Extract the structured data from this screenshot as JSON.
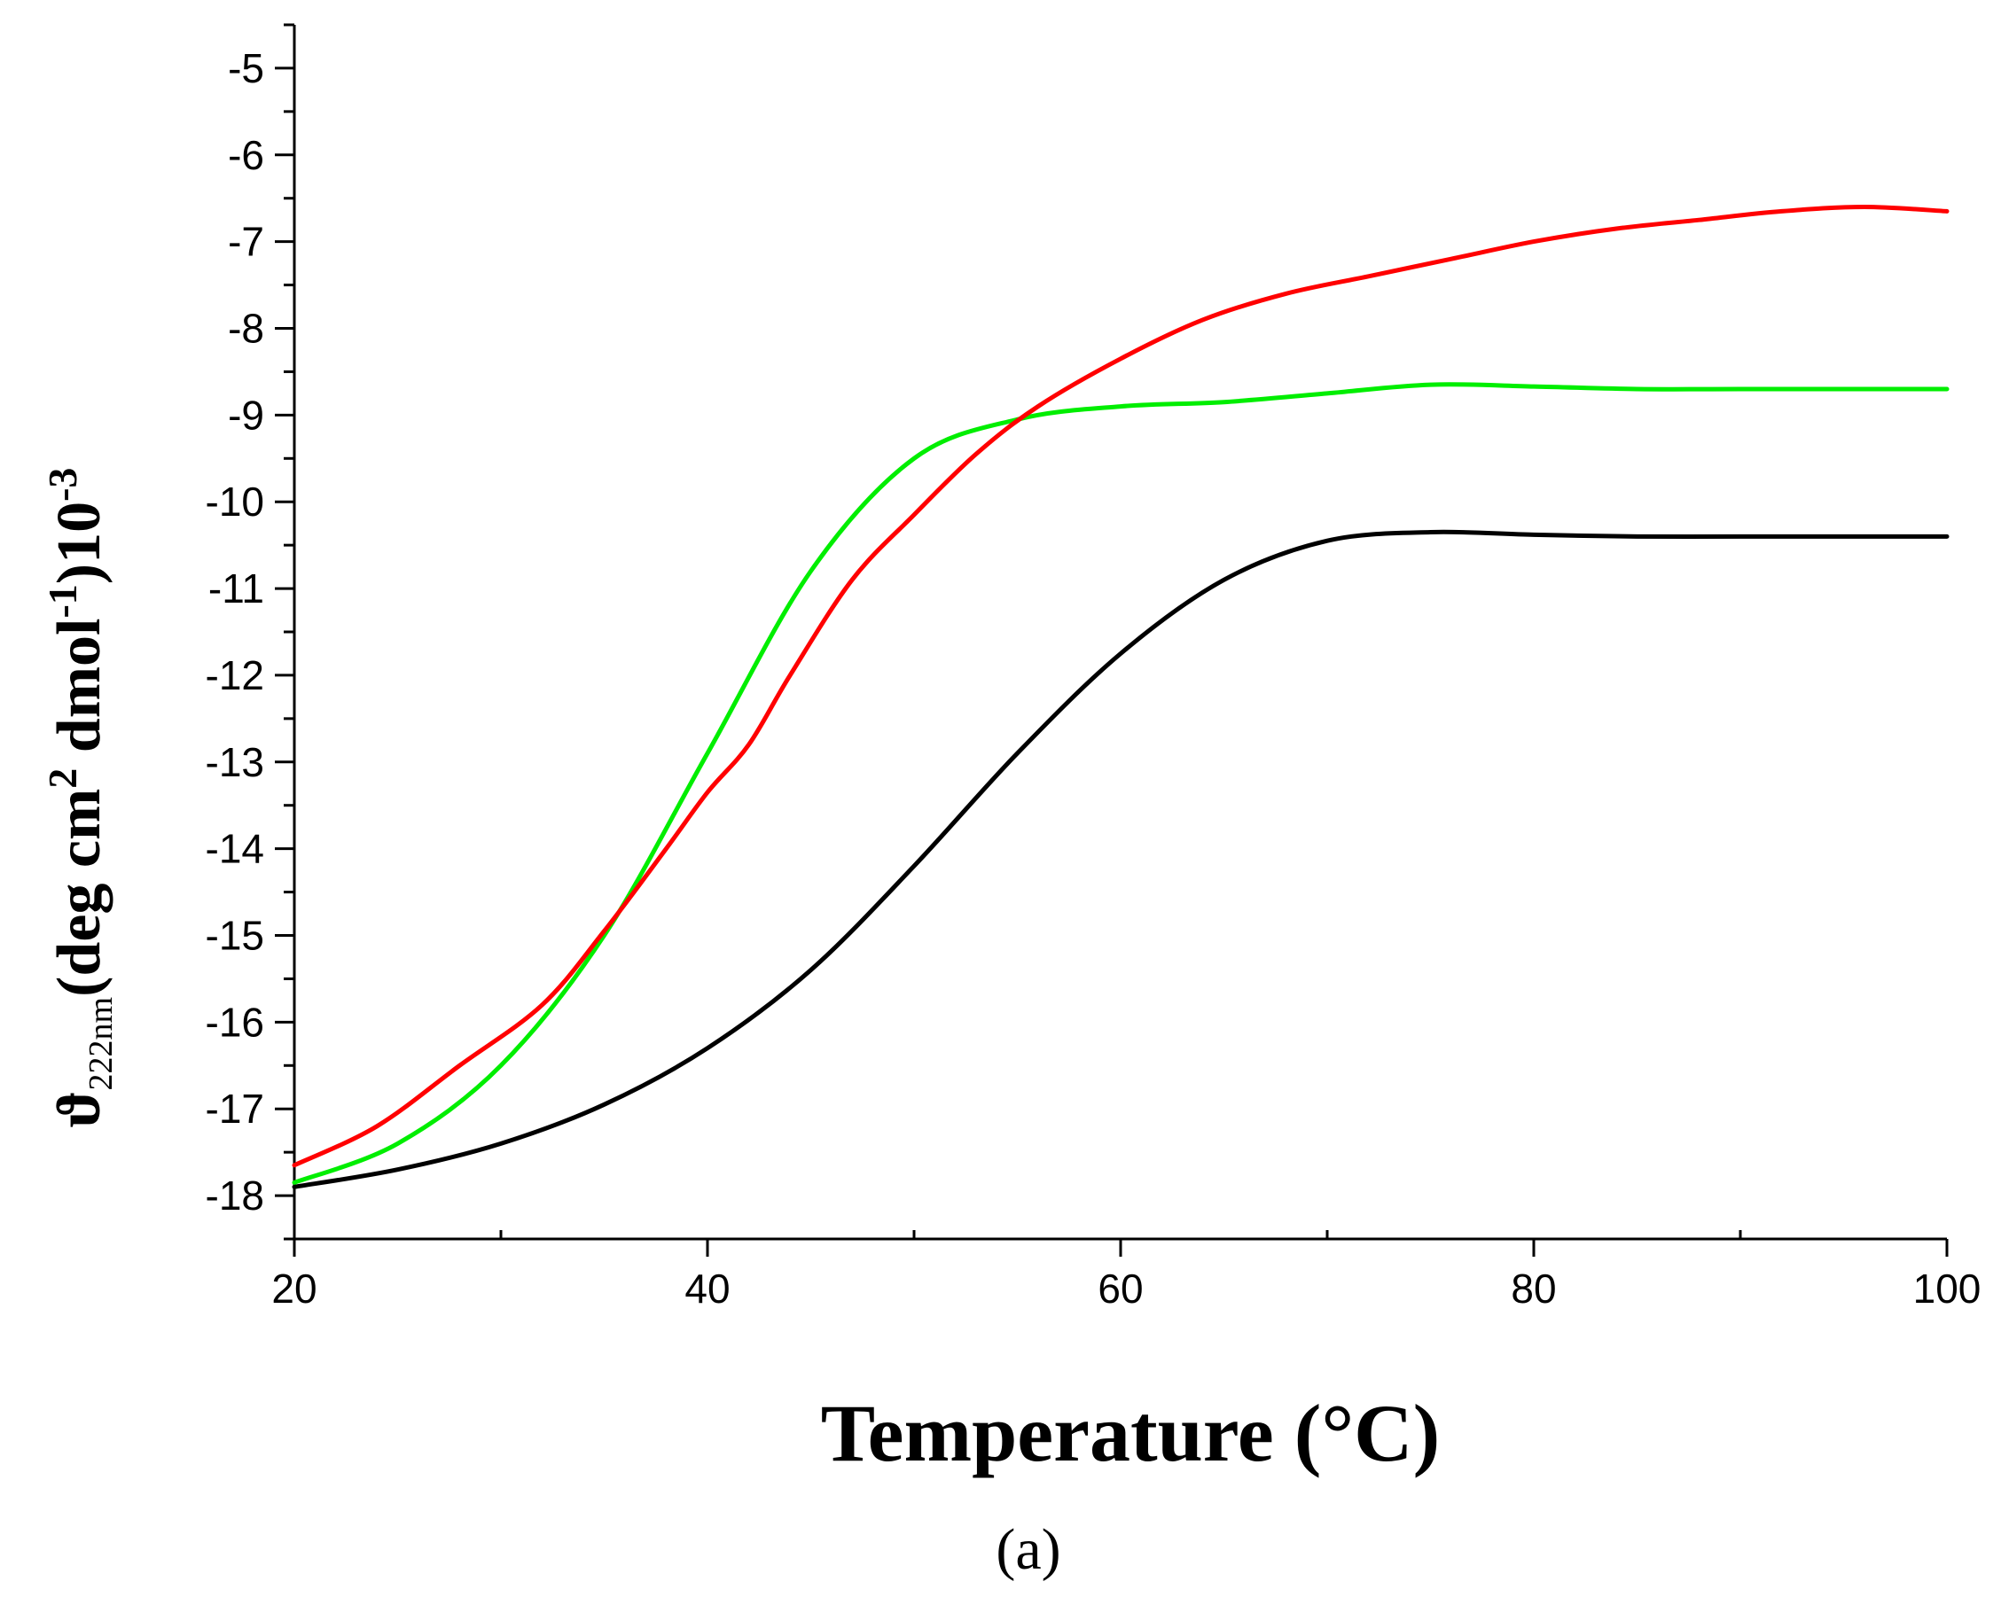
{
  "chart_data": {
    "type": "line",
    "title": "",
    "xlabel": "Temperature (°C)",
    "ylabel": {
      "symbol": "ϑ",
      "subscript": "222nm",
      "units_open": "(deg cm",
      "units_sup1": "2",
      "units_mid": " dmol",
      "units_sup2": "-1",
      "units_close": ")10",
      "units_sup3": "-3"
    },
    "xlim": [
      20,
      100
    ],
    "ylim": [
      -18.5,
      -4.5
    ],
    "xticks": [
      20,
      40,
      60,
      80,
      100
    ],
    "yticks": [
      -18,
      -17,
      -16,
      -15,
      -14,
      -13,
      -12,
      -11,
      -10,
      -9,
      -8,
      -7,
      -6,
      -5
    ],
    "xtick_labels": [
      "20",
      "40",
      "60",
      "80",
      "100"
    ],
    "ytick_labels": [
      "-18",
      "-17",
      "-16",
      "-15",
      "-14",
      "-13",
      "-12",
      "-11",
      "-10",
      "-9",
      "-8",
      "-7",
      "-6",
      "-5"
    ],
    "grid": false,
    "caption": "(a)",
    "series": [
      {
        "name": "black",
        "color": "#000000",
        "x": [
          20,
          25,
          30,
          35,
          40,
          45,
          50,
          55,
          60,
          65,
          70,
          75,
          80,
          85,
          90,
          95,
          100
        ],
        "y": [
          -17.9,
          -17.7,
          -17.4,
          -16.95,
          -16.3,
          -15.4,
          -14.2,
          -12.9,
          -11.75,
          -10.9,
          -10.45,
          -10.35,
          -10.38,
          -10.4,
          -10.4,
          -10.4,
          -10.4
        ]
      },
      {
        "name": "green",
        "color": "#00ee00",
        "x": [
          20,
          25,
          30,
          35,
          40,
          45,
          50,
          55,
          60,
          65,
          70,
          75,
          80,
          85,
          90,
          95,
          100
        ],
        "y": [
          -17.85,
          -17.4,
          -16.5,
          -15.0,
          -12.9,
          -10.8,
          -9.5,
          -9.05,
          -8.9,
          -8.85,
          -8.75,
          -8.65,
          -8.67,
          -8.7,
          -8.7,
          -8.7,
          -8.7
        ]
      },
      {
        "name": "red",
        "color": "#ff0000",
        "x": [
          20,
          24,
          28,
          32,
          35,
          38,
          40,
          42,
          44,
          47,
          50,
          53,
          56,
          60,
          64,
          68,
          72,
          76,
          80,
          84,
          88,
          92,
          96,
          100
        ],
        "y": [
          -17.65,
          -17.2,
          -16.5,
          -15.8,
          -14.95,
          -14.0,
          -13.35,
          -12.8,
          -12.0,
          -10.9,
          -10.15,
          -9.45,
          -8.9,
          -8.35,
          -7.9,
          -7.6,
          -7.4,
          -7.2,
          -7.0,
          -6.85,
          -6.75,
          -6.65,
          -6.6,
          -6.65
        ]
      }
    ]
  }
}
